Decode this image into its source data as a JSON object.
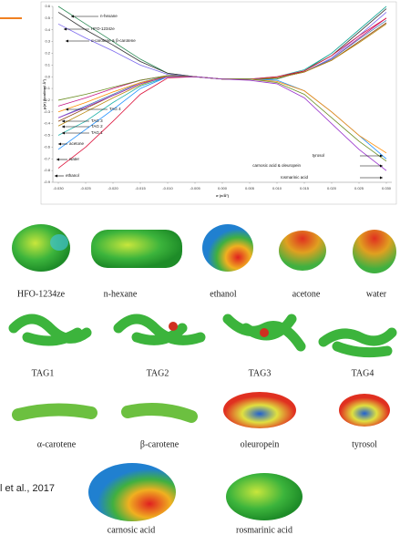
{
  "chart_data": {
    "type": "line",
    "x_label": "σ (e/Å²)",
    "y_label": "μ(σ) (kcal/mol Å²)",
    "x": [
      -0.03,
      -0.025,
      -0.02,
      -0.015,
      -0.01,
      -0.005,
      0,
      0.005,
      0.01,
      0.015,
      0.02,
      0.025,
      0.03
    ],
    "xlim": [
      -0.031,
      0.031
    ],
    "xticks": [
      {
        "value": -0.03,
        "label": "-0.030"
      },
      {
        "value": -0.025,
        "label": "-0.025"
      },
      {
        "value": -0.02,
        "label": "-0.020"
      },
      {
        "value": -0.015,
        "label": "-0.015"
      },
      {
        "value": -0.01,
        "label": "-0.010"
      },
      {
        "value": -0.005,
        "label": "-0.005"
      },
      {
        "value": 0,
        "label": "0.000"
      },
      {
        "value": 0.005,
        "label": "0.005"
      },
      {
        "value": 0.01,
        "label": "0.010"
      },
      {
        "value": 0.015,
        "label": "0.015"
      },
      {
        "value": 0.02,
        "label": "0.020"
      },
      {
        "value": 0.025,
        "label": "0.025"
      },
      {
        "value": 0.03,
        "label": "0.030"
      }
    ],
    "ylim": [
      -0.9,
      0.6
    ],
    "yticks": [
      0.6,
      0.5,
      0.4,
      0.3,
      0.2,
      0.1,
      {
        "value": 0,
        "label": "0.0"
      },
      -0.1,
      -0.2,
      -0.3,
      -0.4,
      -0.5,
      -0.6,
      -0.7,
      -0.8,
      -0.9
    ],
    "grid": false,
    "series": [
      {
        "name": "n-hexane",
        "color": "#2e8b57",
        "values": [
          0.6,
          0.45,
          0.3,
          0.15,
          0.03,
          0,
          -0.02,
          -0.02,
          -0.02,
          0.05,
          0.2,
          0.4,
          0.6
        ]
      },
      {
        "name": "HFO-1234ze",
        "color": "#333333",
        "values": [
          0.55,
          0.4,
          0.27,
          0.13,
          0.03,
          0,
          -0.02,
          -0.02,
          -0.01,
          0.05,
          0.18,
          0.38,
          0.58
        ]
      },
      {
        "name": "α-carotene & β-carotene",
        "color": "#7b68ee",
        "values": [
          0.45,
          0.33,
          0.22,
          0.1,
          0.02,
          0,
          -0.02,
          -0.02,
          -0.01,
          0.04,
          0.16,
          0.35,
          0.55
        ]
      },
      {
        "name": "TAG 4",
        "color": "#c71585",
        "values": [
          -0.25,
          -0.18,
          -0.1,
          -0.03,
          0.01,
          0,
          -0.02,
          -0.02,
          -0.01,
          0.04,
          0.15,
          0.33,
          0.5
        ]
      },
      {
        "name": "TAG 3",
        "color": "#4682b4",
        "values": [
          -0.35,
          -0.25,
          -0.15,
          -0.05,
          0.01,
          0,
          -0.02,
          -0.02,
          -0.01,
          0.04,
          0.15,
          0.32,
          0.48
        ]
      },
      {
        "name": "TAG 2",
        "color": "#8b4513",
        "values": [
          -0.38,
          -0.27,
          -0.16,
          -0.06,
          0.01,
          0,
          -0.02,
          -0.02,
          -0.01,
          0.04,
          0.14,
          0.3,
          0.46
        ]
      },
      {
        "name": "TAG 1",
        "color": "#b8860b",
        "values": [
          -0.42,
          -0.3,
          -0.18,
          -0.07,
          0.01,
          0,
          -0.02,
          -0.02,
          -0.01,
          0.04,
          0.14,
          0.29,
          0.45
        ]
      },
      {
        "name": "acetone",
        "color": "#20b2aa",
        "values": [
          -0.5,
          -0.38,
          -0.22,
          -0.08,
          0,
          0,
          -0.02,
          -0.02,
          0,
          0.06,
          0.2,
          0.4,
          0.6
        ]
      },
      {
        "name": "water",
        "color": "#1e90ff",
        "values": [
          -0.62,
          -0.45,
          -0.28,
          -0.1,
          0,
          0,
          -0.02,
          -0.02,
          -0.03,
          -0.12,
          -0.3,
          -0.5,
          -0.7
        ]
      },
      {
        "name": "ethanol",
        "color": "#dc143c",
        "values": [
          -0.78,
          -0.6,
          -0.38,
          -0.15,
          -0.01,
          0,
          -0.02,
          -0.02,
          0,
          0.05,
          0.18,
          0.35,
          0.5
        ]
      },
      {
        "name": "tyrosol",
        "color": "#ff8c00",
        "values": [
          -0.3,
          -0.22,
          -0.13,
          -0.05,
          0,
          0,
          -0.02,
          -0.02,
          -0.04,
          -0.12,
          -0.3,
          -0.5,
          -0.65
        ]
      },
      {
        "name": "carnosic acid & oleuropein",
        "color": "#6b8e23",
        "values": [
          -0.2,
          -0.15,
          -0.09,
          -0.03,
          0.01,
          0,
          -0.02,
          -0.02,
          -0.05,
          -0.15,
          -0.35,
          -0.55,
          -0.72
        ]
      },
      {
        "name": "rosmarinic acid",
        "color": "#9932cc",
        "values": [
          -0.35,
          -0.26,
          -0.16,
          -0.06,
          0,
          0,
          -0.02,
          -0.03,
          -0.06,
          -0.18,
          -0.4,
          -0.62,
          -0.8
        ]
      }
    ]
  },
  "molecules": [
    "HFO-1234ze",
    "n-hexane",
    "ethanol",
    "acetone",
    "water",
    "TAG1",
    "TAG2",
    "TAG3",
    "TAG4",
    "α-carotene",
    "β-carotene",
    "oleuropein",
    "tyrosol",
    "carnosic acid",
    "rosmarinic acid"
  ],
  "citation": "l et al., 2017"
}
